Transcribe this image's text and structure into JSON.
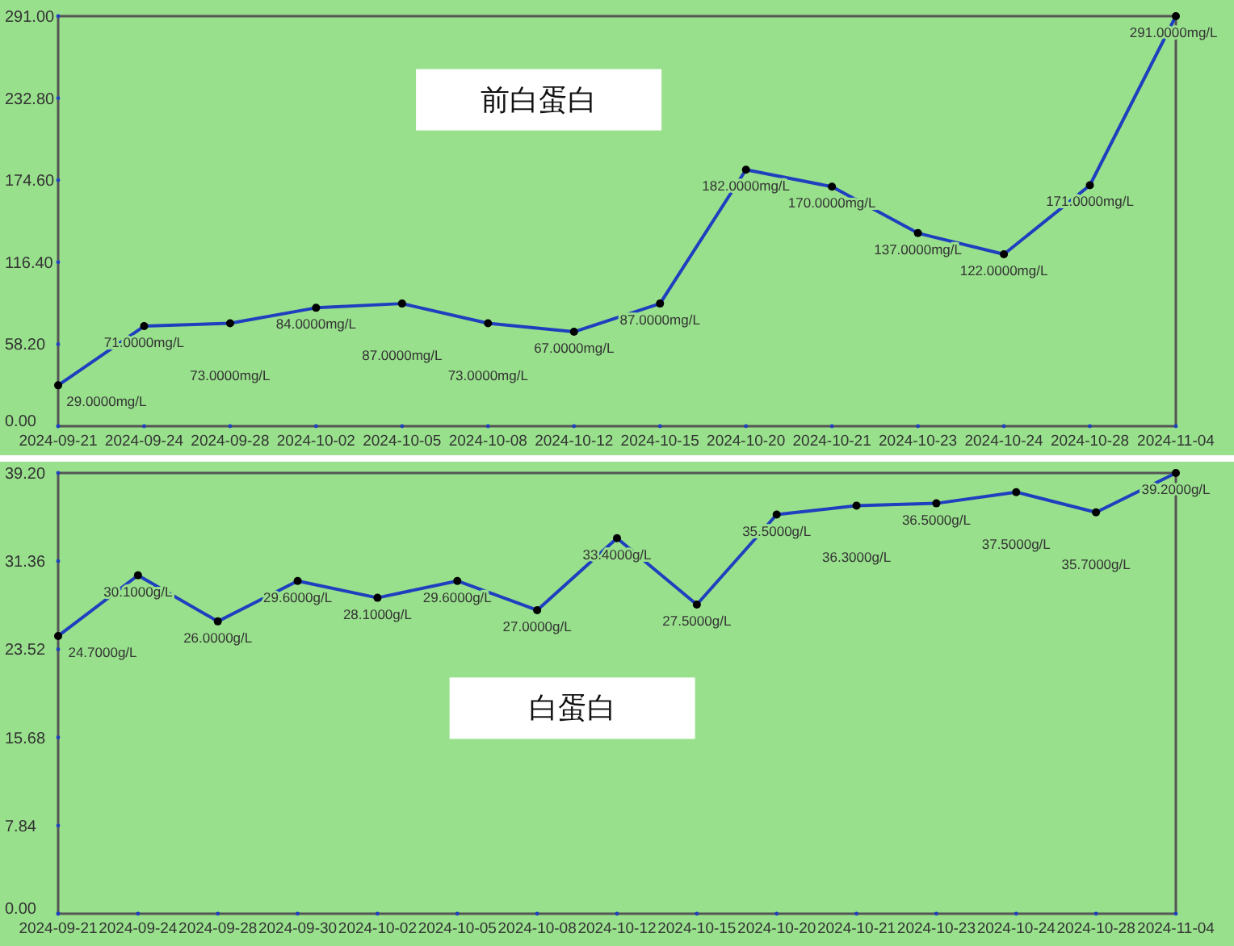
{
  "chart_data": [
    {
      "type": "line",
      "title": "前白蛋白",
      "categories": [
        "2024-09-21",
        "2024-09-24",
        "2024-09-28",
        "2024-10-02",
        "2024-10-05",
        "2024-10-08",
        "2024-10-12",
        "2024-10-15",
        "2024-10-20",
        "2024-10-21",
        "2024-10-23",
        "2024-10-24",
        "2024-10-28",
        "2024-11-04"
      ],
      "series": [
        {
          "color": "#1f3fbf",
          "values": [
            29,
            71,
            73,
            84,
            87,
            73,
            67,
            87,
            182,
            170,
            137,
            122,
            171,
            291
          ],
          "value_labels": [
            "29.0000mg/L",
            "71.0000mg/L",
            "73.0000mg/L",
            "84.0000mg/L",
            "87.0000mg/L",
            "73.0000mg/L",
            "67.0000mg/L",
            "87.0000mg/L",
            "182.0000mg/L",
            "170.0000mg/L",
            "137.0000mg/L",
            "122.0000mg/L",
            "171.0000mg/L",
            "291.0000mg/L"
          ]
        }
      ],
      "ylim": [
        0,
        291
      ],
      "yticks": [
        {
          "value": 0,
          "label": "0.00"
        },
        {
          "value": 58.2,
          "label": "58.20"
        },
        {
          "value": 116.4,
          "label": "116.40"
        },
        {
          "value": 174.6,
          "label": "174.60"
        },
        {
          "value": 232.8,
          "label": "232.80"
        },
        {
          "value": 291,
          "label": "291.00"
        }
      ],
      "grid": false,
      "marker": "circle",
      "line_style": "solid"
    },
    {
      "type": "line",
      "title": "白蛋白",
      "categories": [
        "2024-09-21",
        "2024-09-24",
        "2024-09-28",
        "2024-09-30",
        "2024-10-02",
        "2024-10-05",
        "2024-10-08",
        "2024-10-12",
        "2024-10-15",
        "2024-10-20",
        "2024-10-21",
        "2024-10-23",
        "2024-10-24",
        "2024-10-28",
        "2024-11-04"
      ],
      "series": [
        {
          "color": "#1f3fbf",
          "values": [
            24.7,
            30.1,
            26.0,
            29.6,
            28.1,
            29.6,
            27.0,
            33.4,
            27.5,
            35.5,
            36.3,
            36.5,
            37.5,
            35.7,
            39.2
          ],
          "value_labels": [
            "24.7000g/L",
            "30.1000g/L",
            "26.0000g/L",
            "29.6000g/L",
            "28.1000g/L",
            "29.6000g/L",
            "27.0000g/L",
            "33.4000g/L",
            "27.5000g/L",
            "35.5000g/L",
            "36.3000g/L",
            "36.5000g/L",
            "37.5000g/L",
            "35.7000g/L",
            "39.2000g/L"
          ]
        }
      ],
      "ylim": [
        0,
        39.2
      ],
      "yticks": [
        {
          "value": 0,
          "label": "0.00"
        },
        {
          "value": 7.84,
          "label": "7.84"
        },
        {
          "value": 15.68,
          "label": "15.68"
        },
        {
          "value": 23.52,
          "label": "23.52"
        },
        {
          "value": 31.36,
          "label": "31.36"
        },
        {
          "value": 39.2,
          "label": "39.20"
        }
      ],
      "grid": false,
      "marker": "circle",
      "line_style": "solid"
    }
  ]
}
